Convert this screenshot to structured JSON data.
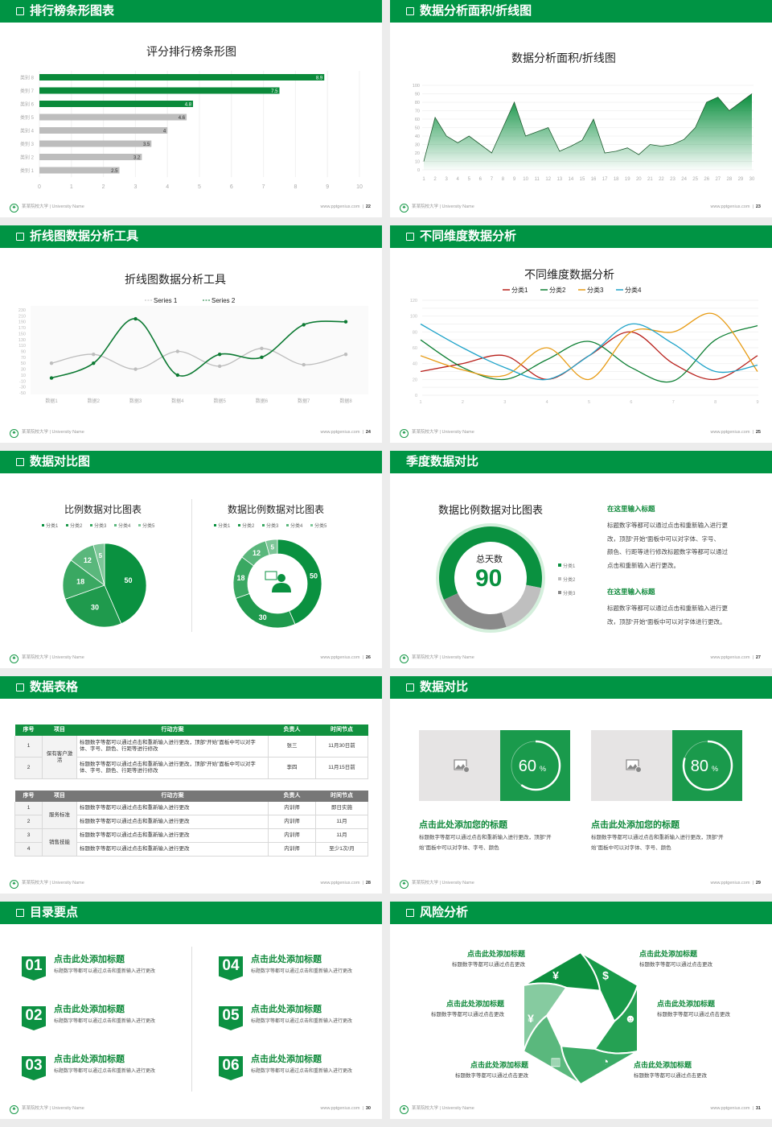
{
  "colors": {
    "brand": "#009444",
    "dark_green": "#0c8a3c",
    "gray": "#bdbdbd",
    "red": "#b8201b",
    "green": "#0d7f33",
    "orange": "#e79b14",
    "blue": "#1fa3c9"
  },
  "footer": {
    "school": "某某院校大学 | University Name",
    "site": "www.pptgenius.com",
    "logo_icon": "university-logo-icon"
  },
  "slides": [
    {
      "title": "排行榜条形图表",
      "page": "22",
      "chart_title": "评分排行榜条形图"
    },
    {
      "title": "数据分析面积/折线图",
      "page": "23",
      "chart_title": "数据分析面积/折线图"
    },
    {
      "title": "折线图数据分析工具",
      "page": "24",
      "chart_title": "折线图数据分析工具"
    },
    {
      "title": "不同维度数据分析",
      "page": "25",
      "chart_title": "不同维度数据分析"
    },
    {
      "title": "数据对比图",
      "page": "26",
      "chart_title_left": "比例数据对比图表",
      "chart_title_right": "数据比例数据对比图表"
    },
    {
      "title": "季度数据对比",
      "page": "27",
      "chart_title": "数据比例数据对比图表",
      "center_label": "总天数",
      "center_value": "90",
      "blocks": [
        {
          "heading": "在这里输入标题",
          "lines": [
            "标题数字等都可以通过点击和重新输入进行更",
            "改，顶部“开始”面板中可以对字体、字号、",
            "颜色、行距等进行修改标题数字等都可以通过",
            "点击和重新输入进行更改。"
          ]
        },
        {
          "heading": "在这里输入标题",
          "lines": [
            "标题数字等都可以通过点击和重新输入进行更",
            "改，顶部“开始”面板中可以对字体进行更改。"
          ]
        }
      ]
    },
    {
      "title": "数据表格",
      "page": "28",
      "table_headers": [
        "序号",
        "项目",
        "行动方案",
        "负责人",
        "时间节点"
      ],
      "table1": [
        {
          "project": "保有客户激活",
          "rows": [
            {
              "no": "1",
              "plan": "标题数字等都可以通过点击和重新输入进行更改，顶部“开始”面板中可以对字体、字号、颜色、行距等进行修改",
              "owner": "张三",
              "time": "11月30日前"
            },
            {
              "no": "2",
              "plan": "标题数字等都可以通过点击和重新输入进行更改，顶部“开始”面板中可以对字体、字号、颜色、行距等进行修改",
              "owner": "李四",
              "time": "11月15日前"
            }
          ]
        }
      ],
      "table2": [
        {
          "project": "服务标准",
          "rows": [
            {
              "no": "1",
              "plan": "标题数字等都可以通过点击和重新输入进行更改",
              "owner": "内训师",
              "time": "即日实施"
            },
            {
              "no": "2",
              "plan": "标题数字等都可以通过点击和重新输入进行更改",
              "owner": "内训师",
              "time": "11月"
            }
          ]
        },
        {
          "project": "销售技能",
          "rows": [
            {
              "no": "3",
              "plan": "标题数字等都可以通过点击和重新输入进行更改",
              "owner": "内训师",
              "time": "11月"
            },
            {
              "no": "4",
              "plan": "标题数字等都可以通过点击和重新输入进行更改",
              "owner": "内训师",
              "time": "至少1次/月"
            }
          ]
        }
      ]
    },
    {
      "title": "数据对比",
      "page": "29",
      "cards": [
        {
          "progress": 60,
          "value": "60",
          "unit": "%",
          "image_icon": "image-placeholder-icon",
          "heading": "点击此处添加您的标题",
          "lines": [
            "标题数字等都可以通过点击和重新输入进行更改，顶部“开",
            "始”面板中可以对字体、字号、颜色"
          ]
        },
        {
          "progress": 80,
          "value": "80",
          "unit": "%",
          "image_icon": "image-placeholder-icon",
          "heading": "点击此处添加您的标题",
          "lines": [
            "标题数字等都可以通过点击和重新输入进行更改，顶部“开",
            "始”面板中可以对字体、字号、颜色"
          ]
        }
      ]
    },
    {
      "title": "目录要点",
      "page": "30",
      "items": [
        {
          "num": "01",
          "title": "点击此处添加标题",
          "desc": "标题数字等都可以通过点击和重新输入进行更改"
        },
        {
          "num": "02",
          "title": "点击此处添加标题",
          "desc": "标题数字等都可以通过点击和重新输入进行更改"
        },
        {
          "num": "03",
          "title": "点击此处添加标题",
          "desc": "标题数字等都可以通过点击和重新输入进行更改"
        },
        {
          "num": "04",
          "title": "点击此处添加标题",
          "desc": "标题数字等都可以通过点击和重新输入进行更改"
        },
        {
          "num": "05",
          "title": "点击此处添加标题",
          "desc": "标题数字等都可以通过点击和重新输入进行更改"
        },
        {
          "num": "06",
          "title": "点击此处添加标题",
          "desc": "标题数字等都可以通过点击和重新输入进行更改"
        }
      ]
    },
    {
      "title": "风险分析",
      "page": "31",
      "items": [
        {
          "title": "点击此处添加标题",
          "desc": "标题数字等都可以通过点击更改",
          "icon": "money-bag-icon",
          "glyph": "¥"
        },
        {
          "title": "点击此处添加标题",
          "desc": "标题数字等都可以通过点击更改",
          "icon": "coins-icon",
          "glyph": "$"
        },
        {
          "title": "点击此处添加标题",
          "desc": "标题数字等都可以通过点击更改",
          "icon": "users-icon",
          "glyph": "☻"
        },
        {
          "title": "点击此处添加标题",
          "desc": "标题数字等都可以通过点击更改",
          "icon": "pie-chart-icon",
          "glyph": "◔"
        },
        {
          "title": "点击此处添加标题",
          "desc": "标题数字等都可以通过点击更改",
          "icon": "building-icon",
          "glyph": "▥"
        },
        {
          "title": "点击此处添加标题",
          "desc": "标题数字等都可以通过点击更改",
          "icon": "hand-money-icon",
          "glyph": "¥"
        }
      ]
    }
  ],
  "chart_data": [
    {
      "type": "bar",
      "orientation": "horizontal",
      "title": "评分排行榜条形图",
      "categories": [
        "类别 1",
        "类别 2",
        "类别 3",
        "类别 4",
        "类别 5",
        "类别 6",
        "类别 7",
        "类别 8"
      ],
      "values": [
        2.5,
        3.2,
        3.5,
        4,
        4.6,
        4.8,
        7.5,
        8.9
      ],
      "highlight": [
        "类别 6",
        "类别 7",
        "类别 8"
      ],
      "xlim": [
        0,
        10
      ],
      "x_ticks": [
        0,
        1,
        2,
        3,
        4,
        5,
        6,
        7,
        8,
        9,
        10
      ],
      "grid": true
    },
    {
      "type": "area",
      "title": "数据分析面积/折线图",
      "x": [
        1,
        2,
        3,
        4,
        5,
        6,
        7,
        8,
        9,
        10,
        11,
        12,
        13,
        14,
        15,
        16,
        17,
        18,
        19,
        20,
        21,
        22,
        23,
        24,
        25,
        26,
        27,
        28,
        29,
        30
      ],
      "values": [
        10,
        62,
        40,
        32,
        40,
        30,
        20,
        50,
        80,
        40,
        45,
        50,
        22,
        28,
        35,
        60,
        20,
        22,
        26,
        18,
        30,
        28,
        30,
        36,
        50,
        80,
        86,
        70,
        80,
        90
      ],
      "ylim": [
        0,
        100
      ],
      "y_ticks": [
        0,
        10,
        20,
        30,
        40,
        50,
        60,
        70,
        80,
        90,
        100
      ]
    },
    {
      "type": "line",
      "smooth": true,
      "title": "折线图数据分析工具",
      "categories": [
        "数据1",
        "数据2",
        "数据3",
        "数据4",
        "数据5",
        "数据6",
        "数据7",
        "数据8"
      ],
      "series": [
        {
          "name": "Series 1",
          "values": [
            50,
            80,
            30,
            90,
            40,
            100,
            45,
            80
          ]
        },
        {
          "name": "Series 2",
          "values": [
            0,
            50,
            200,
            10,
            80,
            70,
            180,
            190
          ]
        }
      ],
      "ylim": [
        -50,
        230
      ],
      "y_ticks": [
        230,
        210,
        190,
        170,
        150,
        130,
        110,
        90,
        70,
        50,
        30,
        10,
        -10,
        -30,
        -50
      ],
      "legend": "top"
    },
    {
      "type": "line",
      "smooth": true,
      "title": "不同维度数据分析",
      "x": [
        1,
        2,
        3,
        4,
        5,
        6,
        7,
        8,
        9
      ],
      "series": [
        {
          "name": "分类1",
          "values": [
            30,
            40,
            50,
            20,
            50,
            80,
            40,
            20,
            50
          ]
        },
        {
          "name": "分类2",
          "values": [
            70,
            35,
            20,
            45,
            68,
            35,
            18,
            70,
            88
          ]
        },
        {
          "name": "分类3",
          "values": [
            50,
            32,
            25,
            60,
            20,
            80,
            80,
            102,
            30
          ]
        },
        {
          "name": "分类4",
          "values": [
            90,
            60,
            35,
            20,
            50,
            90,
            65,
            30,
            38
          ]
        }
      ],
      "ylim": [
        0,
        120
      ],
      "y_ticks": [
        120,
        100,
        80,
        60,
        40,
        20,
        0
      ],
      "legend": "top"
    },
    {
      "type": "pie",
      "title": "比例数据对比图表",
      "categories": [
        "分类1",
        "分类2",
        "分类3",
        "分类4",
        "分类5"
      ],
      "values": [
        50,
        30,
        18,
        12,
        5
      ],
      "legend": "top"
    },
    {
      "type": "pie",
      "donut": true,
      "title": "数据比例数据对比图表",
      "categories": [
        "分类1",
        "分类2",
        "分类3",
        "分类4",
        "分类5"
      ],
      "values": [
        50,
        30,
        18,
        12,
        5
      ],
      "legend": "top",
      "center_icon": "customer-service-icon"
    },
    {
      "type": "pie",
      "donut": true,
      "title": "数据比例数据对比图表",
      "categories": [
        "分类1",
        "分类2",
        "分类3"
      ],
      "values": [
        60,
        17,
        23
      ],
      "legend": "right"
    }
  ]
}
